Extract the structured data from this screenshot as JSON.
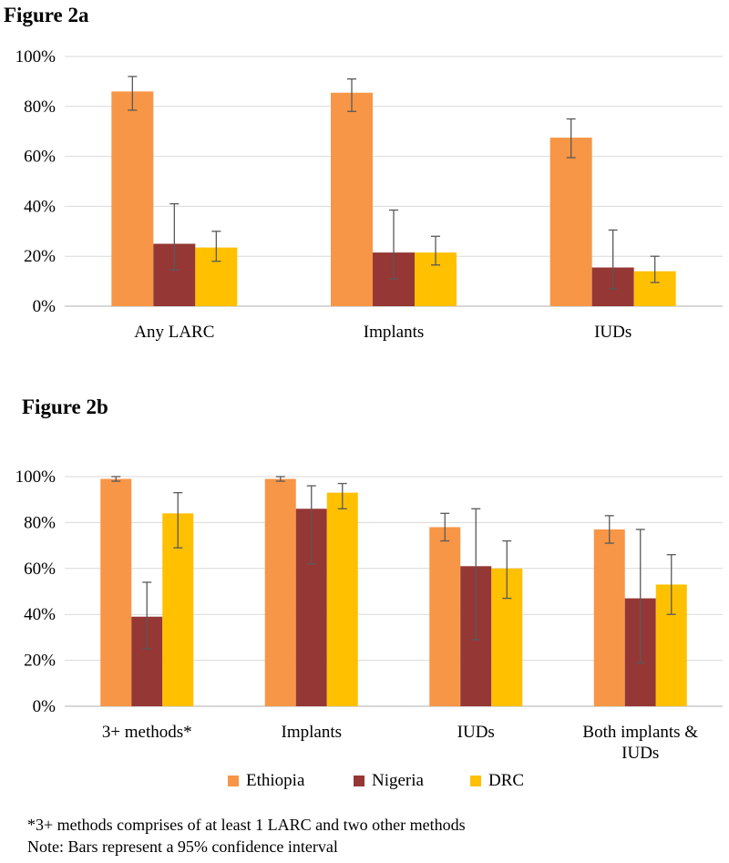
{
  "colors": {
    "Ethiopia": "#F79646",
    "Nigeria": "#953735",
    "DRC": "#FFC000",
    "grid": "#D9D9D9",
    "axis": "#BFBFBF",
    "error": "#595959"
  },
  "chart_data": [
    {
      "type": "bar",
      "title": "Figure 2a",
      "categories": [
        "Any LARC",
        "Implants",
        "IUDs"
      ],
      "ylim": [
        0,
        100
      ],
      "yticks": [
        "0%",
        "20%",
        "40%",
        "60%",
        "80%",
        "100%"
      ],
      "series": [
        {
          "name": "Ethiopia",
          "values": [
            86,
            85.5,
            67.5
          ],
          "ci_low": [
            78.5,
            78,
            59.5
          ],
          "ci_high": [
            92,
            91,
            75
          ]
        },
        {
          "name": "Nigeria",
          "values": [
            25,
            21.5,
            15.5
          ],
          "ci_low": [
            14.5,
            11,
            7
          ],
          "ci_high": [
            41,
            38.5,
            30.5
          ]
        },
        {
          "name": "DRC",
          "values": [
            23.5,
            21.5,
            14
          ],
          "ci_low": [
            18,
            16.5,
            9.5
          ],
          "ci_high": [
            30,
            28,
            20
          ]
        }
      ]
    },
    {
      "type": "bar",
      "title": "Figure 2b",
      "categories": [
        [
          "3+ methods*"
        ],
        [
          "Implants"
        ],
        [
          "IUDs"
        ],
        [
          "Both implants &",
          "IUDs"
        ]
      ],
      "ylim": [
        0,
        100
      ],
      "yticks": [
        "0%",
        "20%",
        "40%",
        "60%",
        "80%",
        "100%"
      ],
      "series": [
        {
          "name": "Ethiopia",
          "values": [
            99,
            99,
            78,
            77
          ],
          "ci_low": [
            98,
            98,
            72,
            71
          ],
          "ci_high": [
            100,
            100,
            84,
            83
          ]
        },
        {
          "name": "Nigeria",
          "values": [
            39,
            86,
            61,
            47
          ],
          "ci_low": [
            25,
            62,
            29,
            19
          ],
          "ci_high": [
            54,
            96,
            86,
            77
          ]
        },
        {
          "name": "DRC",
          "values": [
            84,
            93,
            60,
            53
          ],
          "ci_low": [
            69,
            86,
            47,
            40
          ],
          "ci_high": [
            93,
            97,
            72,
            66
          ]
        }
      ]
    }
  ],
  "legend": [
    "Ethiopia",
    "Nigeria",
    "DRC"
  ],
  "notes": {
    "line1": "*3+ methods comprises of at least 1 LARC and two other methods",
    "line2": "Note: Bars represent a 95% confidence interval"
  }
}
